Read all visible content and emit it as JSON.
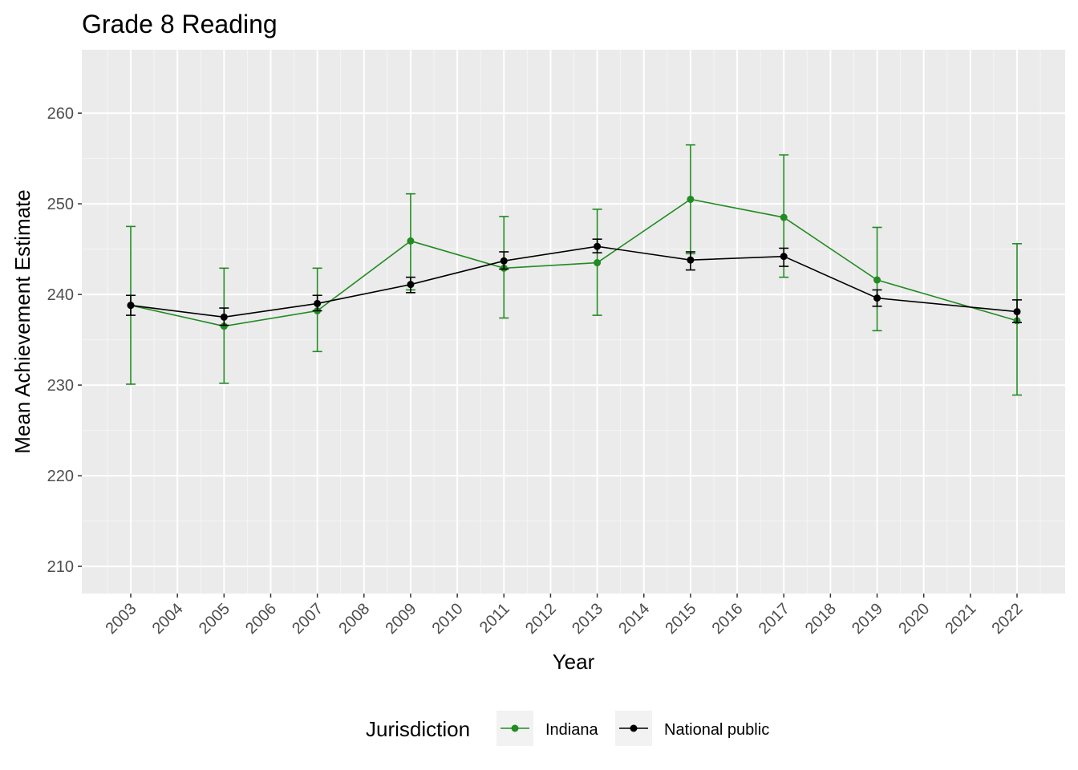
{
  "chart_data": {
    "type": "line",
    "title": "Grade 8 Reading",
    "xlabel": "Year",
    "ylabel": "Mean Achievement Estimate",
    "x_ticks": [
      "2003",
      "2004",
      "2005",
      "2006",
      "2007",
      "2008",
      "2009",
      "2010",
      "2011",
      "2012",
      "2013",
      "2014",
      "2015",
      "2016",
      "2017",
      "2018",
      "2019",
      "2020",
      "2021",
      "2022"
    ],
    "y_ticks": [
      210,
      220,
      230,
      240,
      250,
      260
    ],
    "ylim": [
      207,
      267
    ],
    "grid": true,
    "legend": {
      "title": "Jurisdiction",
      "position": "bottom"
    },
    "series": [
      {
        "name": "Indiana",
        "color": "#228b22",
        "points": [
          {
            "x": "2003",
            "y": 238.8,
            "lo": 230.1,
            "hi": 247.5
          },
          {
            "x": "2005",
            "y": 236.5,
            "lo": 230.2,
            "hi": 242.9
          },
          {
            "x": "2007",
            "y": 238.2,
            "lo": 233.7,
            "hi": 242.9
          },
          {
            "x": "2009",
            "y": 245.9,
            "lo": 240.5,
            "hi": 251.1
          },
          {
            "x": "2011",
            "y": 242.9,
            "lo": 237.4,
            "hi": 248.6
          },
          {
            "x": "2013",
            "y": 243.5,
            "lo": 237.7,
            "hi": 249.4
          },
          {
            "x": "2015",
            "y": 250.5,
            "lo": 244.5,
            "hi": 256.5
          },
          {
            "x": "2017",
            "y": 248.5,
            "lo": 241.9,
            "hi": 255.4
          },
          {
            "x": "2019",
            "y": 241.6,
            "lo": 236.0,
            "hi": 247.4
          },
          {
            "x": "2022",
            "y": 237.1,
            "lo": 228.9,
            "hi": 245.6
          }
        ]
      },
      {
        "name": "National public",
        "color": "#000000",
        "points": [
          {
            "x": "2003",
            "y": 238.8,
            "lo": 237.7,
            "hi": 239.9
          },
          {
            "x": "2005",
            "y": 237.5,
            "lo": 236.6,
            "hi": 238.5
          },
          {
            "x": "2007",
            "y": 239.0,
            "lo": 238.2,
            "hi": 239.9
          },
          {
            "x": "2009",
            "y": 241.1,
            "lo": 240.2,
            "hi": 241.9
          },
          {
            "x": "2011",
            "y": 243.7,
            "lo": 242.8,
            "hi": 244.7
          },
          {
            "x": "2013",
            "y": 245.3,
            "lo": 244.6,
            "hi": 246.1
          },
          {
            "x": "2015",
            "y": 243.8,
            "lo": 242.7,
            "hi": 244.7
          },
          {
            "x": "2017",
            "y": 244.2,
            "lo": 243.1,
            "hi": 245.1
          },
          {
            "x": "2019",
            "y": 239.6,
            "lo": 238.7,
            "hi": 240.5
          },
          {
            "x": "2022",
            "y": 238.1,
            "lo": 236.9,
            "hi": 239.4
          }
        ]
      }
    ]
  }
}
